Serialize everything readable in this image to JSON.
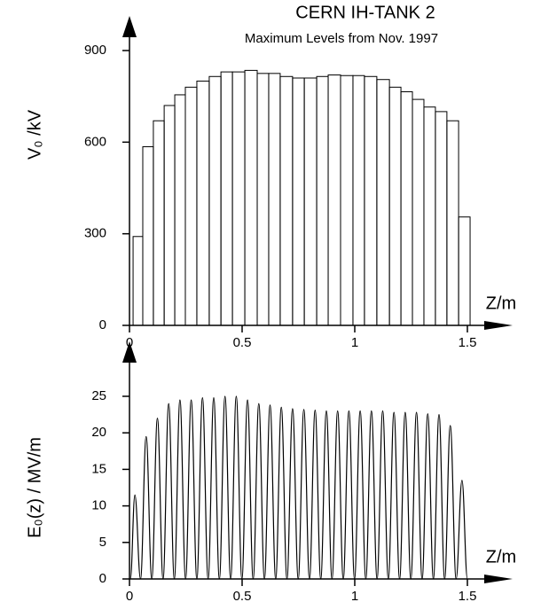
{
  "chart_data": [
    {
      "type": "histogram",
      "title": "CERN    IH-TANK 2",
      "subtitle": "Maximum Levels from Nov. 1997",
      "y_label": "V₀ /kV",
      "x_label": "Z/m",
      "color": "#000000",
      "bins": [
        0.016,
        0.059,
        0.106,
        0.154,
        0.201,
        0.248,
        0.299,
        0.354,
        0.406,
        0.457,
        0.512,
        0.567,
        0.618,
        0.669,
        0.724,
        0.776,
        0.831,
        0.882,
        0.937,
        0.992,
        1.043,
        1.098,
        1.154,
        1.205,
        1.256,
        1.307,
        1.358,
        1.409,
        1.461,
        1.512
      ],
      "values": [
        291,
        585,
        670,
        720,
        755,
        780,
        800,
        815,
        830,
        830,
        835,
        825,
        825,
        815,
        810,
        810,
        815,
        820,
        818,
        818,
        815,
        805,
        780,
        765,
        740,
        715,
        700,
        670,
        355
      ],
      "xlim": [
        0,
        1.5
      ],
      "ylim": [
        0,
        900
      ],
      "xticks": [
        0,
        0.5,
        1,
        1.5
      ],
      "yticks": [
        0,
        300,
        600,
        900
      ]
    },
    {
      "type": "line",
      "y_label": "E₀(z) / MV/m",
      "x_label": "Z/m",
      "color": "#000000",
      "x": [
        0.004,
        0.024,
        0.049,
        0.074,
        0.099,
        0.124,
        0.149,
        0.174,
        0.199,
        0.224,
        0.249,
        0.274,
        0.299,
        0.324,
        0.349,
        0.374,
        0.399,
        0.424,
        0.449,
        0.474,
        0.499,
        0.524,
        0.549,
        0.574,
        0.599,
        0.624,
        0.649,
        0.674,
        0.699,
        0.724,
        0.749,
        0.774,
        0.799,
        0.824,
        0.849,
        0.874,
        0.899,
        0.924,
        0.949,
        0.974,
        0.999,
        1.024,
        1.049,
        1.074,
        1.099,
        1.124,
        1.149,
        1.174,
        1.199,
        1.224,
        1.249,
        1.274,
        1.299,
        1.324,
        1.349,
        1.374,
        1.399,
        1.424,
        1.45,
        1.476,
        1.5
      ],
      "values": [
        0,
        11.5,
        0,
        19.5,
        0,
        22,
        0,
        24,
        0,
        24.5,
        0,
        24.5,
        0,
        24.8,
        0,
        24.8,
        0,
        25,
        0,
        25,
        0,
        24.5,
        0,
        24,
        0,
        23.8,
        0,
        23.5,
        0,
        23.3,
        0,
        23.2,
        0,
        23.1,
        0,
        23,
        0,
        23,
        0,
        23,
        0,
        23,
        0,
        23,
        0,
        23,
        0,
        22.8,
        0,
        22.8,
        0,
        22.8,
        0,
        22.6,
        0,
        22.5,
        0,
        21,
        0,
        13.5,
        0
      ],
      "xlim": [
        0,
        1.5
      ],
      "ylim": [
        0,
        25
      ],
      "xticks": [
        0,
        0.5,
        1,
        1.5
      ],
      "yticks": [
        0,
        5,
        10,
        15,
        20,
        25
      ]
    }
  ]
}
